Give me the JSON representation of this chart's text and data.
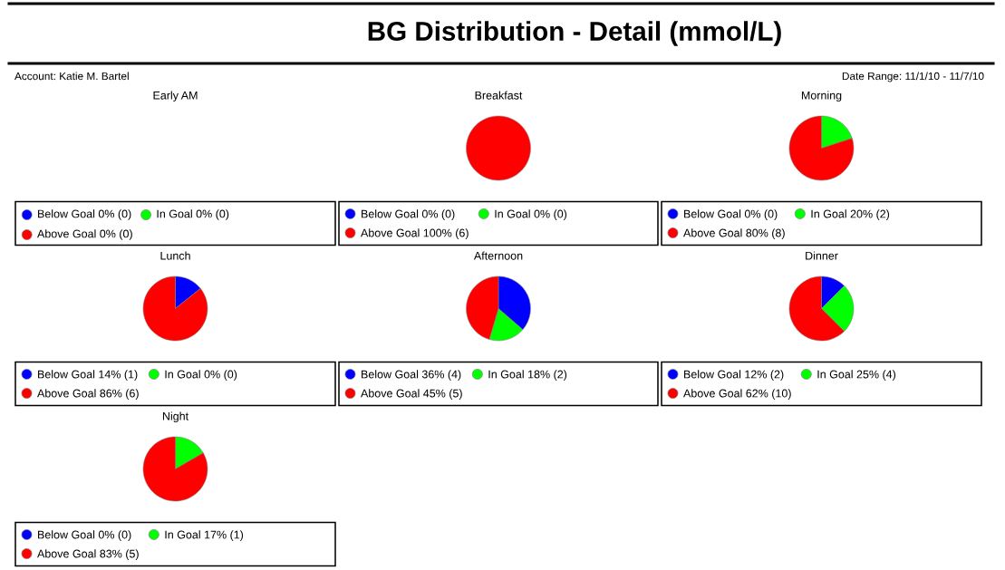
{
  "chart_data": [
    {
      "type": "other",
      "title": "BG Distribution - Detail (mmol/L)",
      "annotations": [
        "Account: Katie M. Bartel",
        "Date Range: 11/1/10 - 11/7/10"
      ]
    },
    {
      "type": "other",
      "title": "Early AM",
      "annotations": [
        "Below Goal 0% (0)",
        "In Goal 0% (0)",
        "Above Goal 0% (0)"
      ]
    },
    {
      "type": "pie",
      "title": "Breakfast",
      "categories": [
        "Below Goal",
        "In Goal",
        "Above Goal"
      ],
      "values": [
        0,
        0,
        6
      ],
      "colors": [
        "#0000ff",
        "#00ff00",
        "#ff0000"
      ],
      "value_labels": [
        "0% (0)",
        "0% (0)",
        "100% (6)"
      ],
      "legend": "bottom"
    },
    {
      "type": "pie",
      "title": "Morning",
      "categories": [
        "Below Goal",
        "In Goal",
        "Above Goal"
      ],
      "values": [
        0,
        2,
        8
      ],
      "colors": [
        "#0000ff",
        "#00ff00",
        "#ff0000"
      ],
      "value_labels": [
        "0% (0)",
        "20% (2)",
        "80% (8)"
      ],
      "legend": "bottom"
    },
    {
      "type": "pie",
      "title": "Lunch",
      "categories": [
        "Below Goal",
        "In Goal",
        "Above Goal"
      ],
      "values": [
        1,
        0,
        6
      ],
      "colors": [
        "#0000ff",
        "#00ff00",
        "#ff0000"
      ],
      "value_labels": [
        "14% (1)",
        "0% (0)",
        "86% (6)"
      ],
      "legend": "bottom"
    },
    {
      "type": "pie",
      "title": "Afternoon",
      "categories": [
        "Below Goal",
        "In Goal",
        "Above Goal"
      ],
      "values": [
        4,
        2,
        5
      ],
      "colors": [
        "#0000ff",
        "#00ff00",
        "#ff0000"
      ],
      "value_labels": [
        "36% (4)",
        "18% (2)",
        "45% (5)"
      ],
      "legend": "bottom"
    },
    {
      "type": "pie",
      "title": "Dinner",
      "categories": [
        "Below Goal",
        "In Goal",
        "Above Goal"
      ],
      "values": [
        2,
        4,
        10
      ],
      "colors": [
        "#0000ff",
        "#00ff00",
        "#ff0000"
      ],
      "value_labels": [
        "12% (2)",
        "25% (4)",
        "62% (10)"
      ],
      "legend": "bottom"
    },
    {
      "type": "pie",
      "title": "Night",
      "categories": [
        "Below Goal",
        "In Goal",
        "Above Goal"
      ],
      "values": [
        0,
        1,
        5
      ],
      "colors": [
        "#0000ff",
        "#00ff00",
        "#ff0000"
      ],
      "value_labels": [
        "0% (0)",
        "17% (1)",
        "83% (5)"
      ],
      "legend": "bottom"
    }
  ]
}
